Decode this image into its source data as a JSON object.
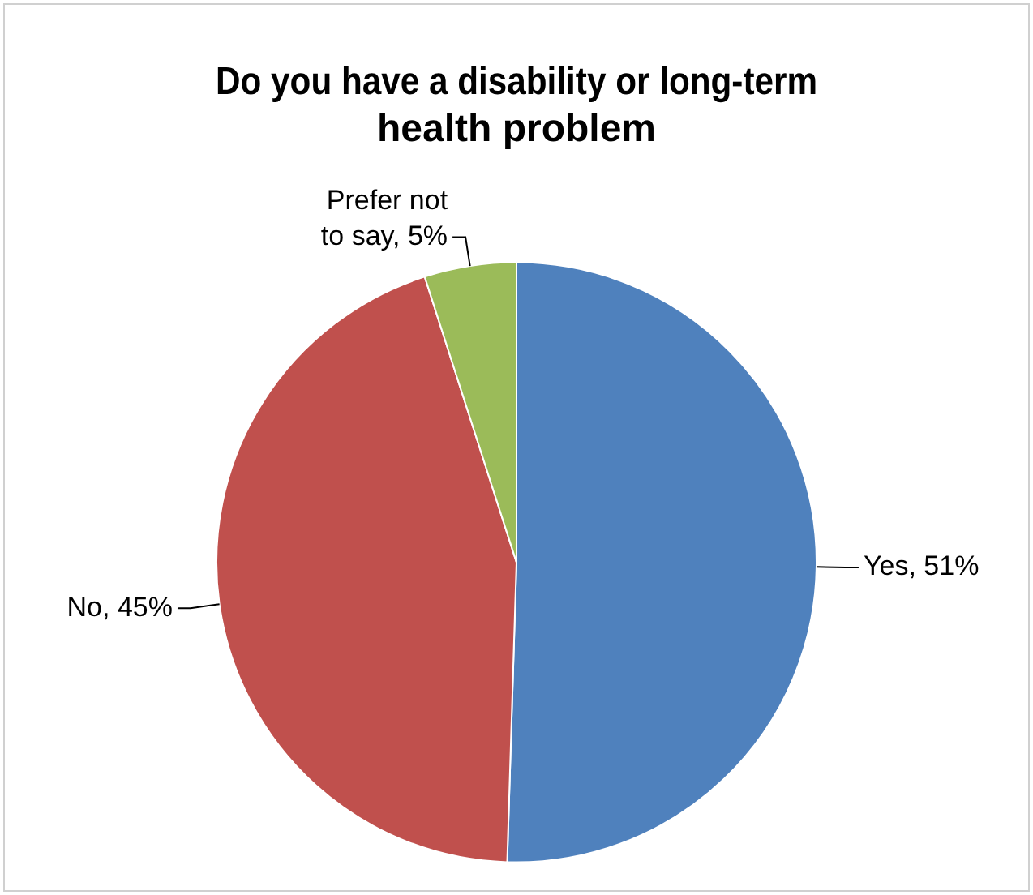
{
  "chart_data": {
    "type": "pie",
    "title": "Do you have a disability or long-term health problem",
    "categories": [
      "Yes",
      "No",
      "Prefer not to say"
    ],
    "values": [
      51,
      45,
      5
    ],
    "value_labels": [
      "51%",
      "45%",
      "5%"
    ],
    "colors": [
      "#4f81bd",
      "#c0504d",
      "#9bbb59"
    ],
    "legend": false
  }
}
